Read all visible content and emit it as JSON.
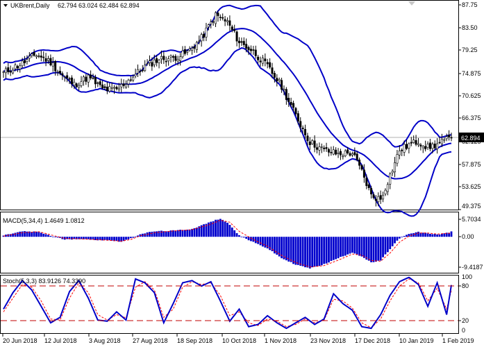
{
  "header": {
    "symbol": "UKBrent,Daily",
    "ohlc": "62.794 63.024 62.484 62.894"
  },
  "price_panel": {
    "y_ticks": [
      "87.75",
      "83.50",
      "79.25",
      "74.875",
      "70.625",
      "66.375",
      "62.125",
      "57.875",
      "53.625",
      "49.375"
    ],
    "current_price": "62.894"
  },
  "macd_panel": {
    "label": "MACD(5,34,4) 1.4649 1.0812",
    "y_ticks": [
      "5.7034",
      "0.00",
      "-9.4187"
    ]
  },
  "stoch_panel": {
    "label": "Stoch(5,3,3) 83.9126 74.3390",
    "y_ticks": [
      "100",
      "80",
      "20",
      "0"
    ]
  },
  "x_axis": {
    "labels": [
      "20 Jun 2018",
      "12 Jul 2018",
      "3 Aug 2018",
      "27 Aug 2018",
      "18 Sep 2018",
      "10 Oct 2018",
      "1 Nov 2018",
      "23 Nov 2018",
      "17 Dec 2018",
      "10 Jan 2019",
      "1 Feb 2019"
    ]
  },
  "colors": {
    "band": "#0000c8",
    "histogram": "#0000cd",
    "signal": "#ff0000",
    "level": "#c00000"
  },
  "chart_data": [
    {
      "type": "candlestick",
      "title": "UKBrent,Daily",
      "ylim": [
        49.375,
        87.75
      ],
      "series": [
        {
          "name": "price",
          "anchors": [
            [
              0,
              75.0
            ],
            [
              8,
              76.8
            ],
            [
              14,
              78.5
            ],
            [
              20,
              77.0
            ],
            [
              25,
              74.5
            ],
            [
              30,
              72.8
            ],
            [
              36,
              74.2
            ],
            [
              42,
              72.0
            ],
            [
              48,
              71.8
            ],
            [
              54,
              74.0
            ],
            [
              60,
              76.2
            ],
            [
              66,
              77.6
            ],
            [
              72,
              77.8
            ],
            [
              78,
              78.8
            ],
            [
              84,
              81.5
            ],
            [
              90,
              85.8
            ],
            [
              95,
              84.5
            ],
            [
              100,
              80.8
            ],
            [
              106,
              79.0
            ],
            [
              112,
              76.2
            ],
            [
              118,
              72.5
            ],
            [
              124,
              67.0
            ],
            [
              130,
              62.0
            ],
            [
              136,
              60.5
            ],
            [
              142,
              59.8
            ],
            [
              148,
              60.0
            ],
            [
              152,
              56.5
            ],
            [
              156,
              52.0
            ],
            [
              160,
              51.3
            ],
            [
              164,
              55.8
            ],
            [
              168,
              60.5
            ],
            [
              172,
              61.5
            ],
            [
              176,
              62.2
            ],
            [
              180,
              61.0
            ],
            [
              184,
              61.6
            ],
            [
              188,
              62.4
            ],
            [
              190,
              62.894
            ]
          ]
        }
      ]
    },
    {
      "type": "bar",
      "title": "MACD(5,34,4)",
      "values_label": "1.4649 1.0812",
      "ylim": [
        -10.6,
        7.2
      ],
      "series": [
        {
          "name": "histogram",
          "anchors": [
            [
              0,
              0.4
            ],
            [
              8,
              1.6
            ],
            [
              15,
              1.4
            ],
            [
              20,
              0.3
            ],
            [
              26,
              -0.8
            ],
            [
              32,
              -0.6
            ],
            [
              38,
              -0.9
            ],
            [
              44,
              -1.0
            ],
            [
              50,
              -1.4
            ],
            [
              54,
              -0.5
            ],
            [
              58,
              0.8
            ],
            [
              64,
              1.6
            ],
            [
              72,
              1.8
            ],
            [
              80,
              2.3
            ],
            [
              88,
              4.4
            ],
            [
              92,
              5.4
            ],
            [
              96,
              3.6
            ],
            [
              100,
              0.4
            ],
            [
              106,
              -1.6
            ],
            [
              112,
              -3.4
            ],
            [
              118,
              -6.3
            ],
            [
              124,
              -8.2
            ],
            [
              130,
              -9.3
            ],
            [
              136,
              -8.1
            ],
            [
              142,
              -6.3
            ],
            [
              148,
              -4.6
            ],
            [
              152,
              -5.8
            ],
            [
              156,
              -7.6
            ],
            [
              160,
              -7.0
            ],
            [
              164,
              -3.6
            ],
            [
              168,
              -0.4
            ],
            [
              172,
              0.8
            ],
            [
              176,
              1.4
            ],
            [
              180,
              1.0
            ],
            [
              184,
              0.7
            ],
            [
              188,
              1.1
            ],
            [
              190,
              1.4649
            ]
          ]
        },
        {
          "name": "signal",
          "anchors": [
            [
              0,
              0.2
            ],
            [
              8,
              1.2
            ],
            [
              15,
              1.5
            ],
            [
              20,
              0.6
            ],
            [
              26,
              -0.5
            ],
            [
              32,
              -0.6
            ],
            [
              38,
              -0.8
            ],
            [
              44,
              -1.0
            ],
            [
              50,
              -1.3
            ],
            [
              54,
              -0.8
            ],
            [
              58,
              0.3
            ],
            [
              64,
              1.2
            ],
            [
              72,
              1.7
            ],
            [
              80,
              2.1
            ],
            [
              88,
              3.7
            ],
            [
              92,
              4.9
            ],
            [
              96,
              4.3
            ],
            [
              100,
              1.6
            ],
            [
              106,
              -0.8
            ],
            [
              112,
              -2.8
            ],
            [
              118,
              -5.5
            ],
            [
              124,
              -7.6
            ],
            [
              130,
              -8.9
            ],
            [
              136,
              -8.5
            ],
            [
              142,
              -6.9
            ],
            [
              148,
              -5.1
            ],
            [
              152,
              -5.4
            ],
            [
              156,
              -7.0
            ],
            [
              160,
              -7.2
            ],
            [
              164,
              -4.8
            ],
            [
              168,
              -1.6
            ],
            [
              172,
              0.2
            ],
            [
              176,
              1.1
            ],
            [
              180,
              1.1
            ],
            [
              184,
              0.8
            ],
            [
              188,
              1.0
            ],
            [
              190,
              1.0812
            ]
          ]
        }
      ]
    },
    {
      "type": "line",
      "title": "Stoch(5,3,3)",
      "values_label": "83.9126 74.3390",
      "ylim": [
        0,
        100
      ],
      "levels": [
        80,
        20
      ],
      "series": [
        {
          "name": "%K",
          "anchors": [
            [
              0,
              40
            ],
            [
              4,
              70
            ],
            [
              8,
              92
            ],
            [
              12,
              75
            ],
            [
              16,
              45
            ],
            [
              20,
              15
            ],
            [
              24,
              25
            ],
            [
              28,
              72
            ],
            [
              32,
              92
            ],
            [
              36,
              60
            ],
            [
              40,
              20
            ],
            [
              44,
              18
            ],
            [
              48,
              35
            ],
            [
              52,
              20
            ],
            [
              56,
              95
            ],
            [
              60,
              88
            ],
            [
              64,
              70
            ],
            [
              68,
              15
            ],
            [
              72,
              50
            ],
            [
              76,
              88
            ],
            [
              80,
              92
            ],
            [
              84,
              82
            ],
            [
              88,
              90
            ],
            [
              92,
              55
            ],
            [
              96,
              18
            ],
            [
              100,
              40
            ],
            [
              104,
              8
            ],
            [
              108,
              12
            ],
            [
              112,
              28
            ],
            [
              116,
              15
            ],
            [
              120,
              5
            ],
            [
              124,
              15
            ],
            [
              128,
              25
            ],
            [
              132,
              12
            ],
            [
              136,
              22
            ],
            [
              140,
              68
            ],
            [
              144,
              50
            ],
            [
              148,
              38
            ],
            [
              152,
              8
            ],
            [
              156,
              5
            ],
            [
              160,
              30
            ],
            [
              164,
              65
            ],
            [
              168,
              90
            ],
            [
              172,
              98
            ],
            [
              176,
              85
            ],
            [
              180,
              45
            ],
            [
              184,
              88
            ],
            [
              188,
              30
            ],
            [
              190,
              83.9
            ]
          ]
        },
        {
          "name": "%D",
          "anchors": [
            [
              0,
              35
            ],
            [
              4,
              60
            ],
            [
              8,
              85
            ],
            [
              12,
              80
            ],
            [
              16,
              55
            ],
            [
              20,
              22
            ],
            [
              24,
              20
            ],
            [
              28,
              60
            ],
            [
              32,
              88
            ],
            [
              36,
              70
            ],
            [
              40,
              30
            ],
            [
              44,
              20
            ],
            [
              48,
              30
            ],
            [
              52,
              24
            ],
            [
              56,
              80
            ],
            [
              60,
              90
            ],
            [
              64,
              75
            ],
            [
              68,
              25
            ],
            [
              72,
              40
            ],
            [
              76,
              80
            ],
            [
              80,
              90
            ],
            [
              84,
              85
            ],
            [
              88,
              88
            ],
            [
              92,
              65
            ],
            [
              96,
              28
            ],
            [
              100,
              35
            ],
            [
              104,
              15
            ],
            [
              108,
              10
            ],
            [
              112,
              22
            ],
            [
              116,
              18
            ],
            [
              120,
              8
            ],
            [
              124,
              12
            ],
            [
              128,
              22
            ],
            [
              132,
              15
            ],
            [
              136,
              20
            ],
            [
              140,
              58
            ],
            [
              144,
              55
            ],
            [
              148,
              42
            ],
            [
              152,
              15
            ],
            [
              156,
              6
            ],
            [
              160,
              22
            ],
            [
              164,
              55
            ],
            [
              168,
              82
            ],
            [
              172,
              95
            ],
            [
              176,
              88
            ],
            [
              180,
              55
            ],
            [
              184,
              78
            ],
            [
              188,
              40
            ],
            [
              190,
              74.3
            ]
          ]
        }
      ]
    }
  ]
}
